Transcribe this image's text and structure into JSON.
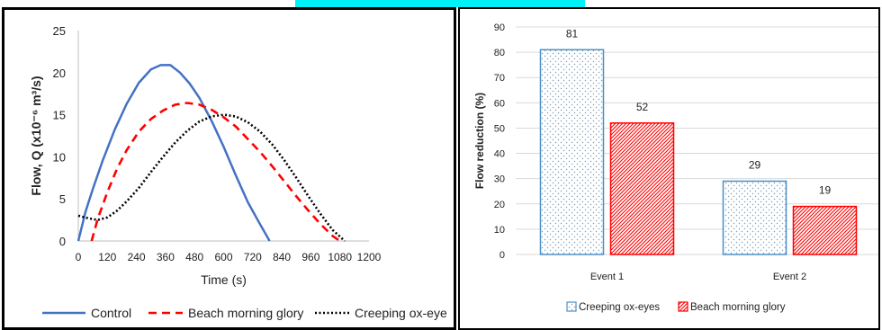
{
  "chart_data": [
    {
      "type": "line",
      "title": "",
      "xlabel": "Time (s)",
      "ylabel": "Flow, Q (x10⁻⁶ m³/s)",
      "xlim": [
        0,
        1200
      ],
      "ylim": [
        0,
        25
      ],
      "x_ticks": [
        "0",
        "120",
        "240",
        "360",
        "480",
        "600",
        "720",
        "840",
        "960",
        "1080",
        "1200"
      ],
      "y_ticks": [
        "0",
        "5",
        "10",
        "15",
        "20",
        "25"
      ],
      "legend_position": "bottom",
      "series": [
        {
          "name": "Control",
          "color": "#4472c4",
          "style": "solid",
          "x": [
            0,
            30,
            60,
            100,
            150,
            200,
            250,
            300,
            340,
            380,
            420,
            460,
            500,
            550,
            600,
            650,
            700,
            750,
            790
          ],
          "y": [
            0,
            3.5,
            6.2,
            9.5,
            13.2,
            16.3,
            18.8,
            20.4,
            20.9,
            20.9,
            20.0,
            18.7,
            17.0,
            14.3,
            11.2,
            7.8,
            4.6,
            2.0,
            0
          ]
        },
        {
          "name": "Beach morning glory",
          "color": "#ff0000",
          "style": "dashed",
          "x": [
            55,
            80,
            120,
            160,
            200,
            250,
            300,
            350,
            400,
            450,
            500,
            550,
            600,
            650,
            700,
            750,
            800,
            850,
            900,
            950,
            1000,
            1050,
            1080
          ],
          "y": [
            0,
            2.6,
            5.8,
            8.6,
            10.8,
            13.0,
            14.5,
            15.5,
            16.2,
            16.4,
            16.2,
            15.6,
            14.7,
            13.6,
            12.1,
            10.6,
            8.9,
            7.1,
            5.3,
            3.6,
            2.0,
            0.6,
            0
          ]
        },
        {
          "name": "Creeping ox-eye",
          "color": "#000000",
          "style": "dotted",
          "x": [
            0,
            40,
            80,
            120,
            160,
            200,
            250,
            300,
            350,
            400,
            450,
            500,
            550,
            600,
            650,
            700,
            750,
            800,
            850,
            900,
            950,
            1000,
            1050,
            1100
          ],
          "y": [
            3.0,
            2.7,
            2.5,
            2.8,
            3.6,
            4.7,
            6.3,
            8.2,
            10.0,
            11.7,
            13.1,
            14.2,
            14.8,
            15.0,
            14.8,
            14.1,
            13.0,
            11.5,
            9.6,
            7.5,
            5.3,
            3.2,
            1.3,
            0
          ]
        }
      ]
    },
    {
      "type": "bar",
      "title": "",
      "xlabel": "",
      "ylabel": "Flow reduction (%)",
      "ylim": [
        0,
        90
      ],
      "y_ticks": [
        "0",
        "10",
        "20",
        "30",
        "40",
        "50",
        "60",
        "70",
        "80",
        "90"
      ],
      "categories": [
        "Event 1",
        "Event 2"
      ],
      "grid": true,
      "legend_position": "bottom",
      "series": [
        {
          "name": "Creeping ox-eyes",
          "color": "#4a90c8",
          "pattern": "dots",
          "values": [
            81,
            29
          ]
        },
        {
          "name": "Beach morning glory",
          "color": "#ff0000",
          "pattern": "hatch",
          "values": [
            52,
            19
          ]
        }
      ],
      "data_labels": [
        [
          "81",
          "29"
        ],
        [
          "52",
          "19"
        ]
      ]
    }
  ]
}
